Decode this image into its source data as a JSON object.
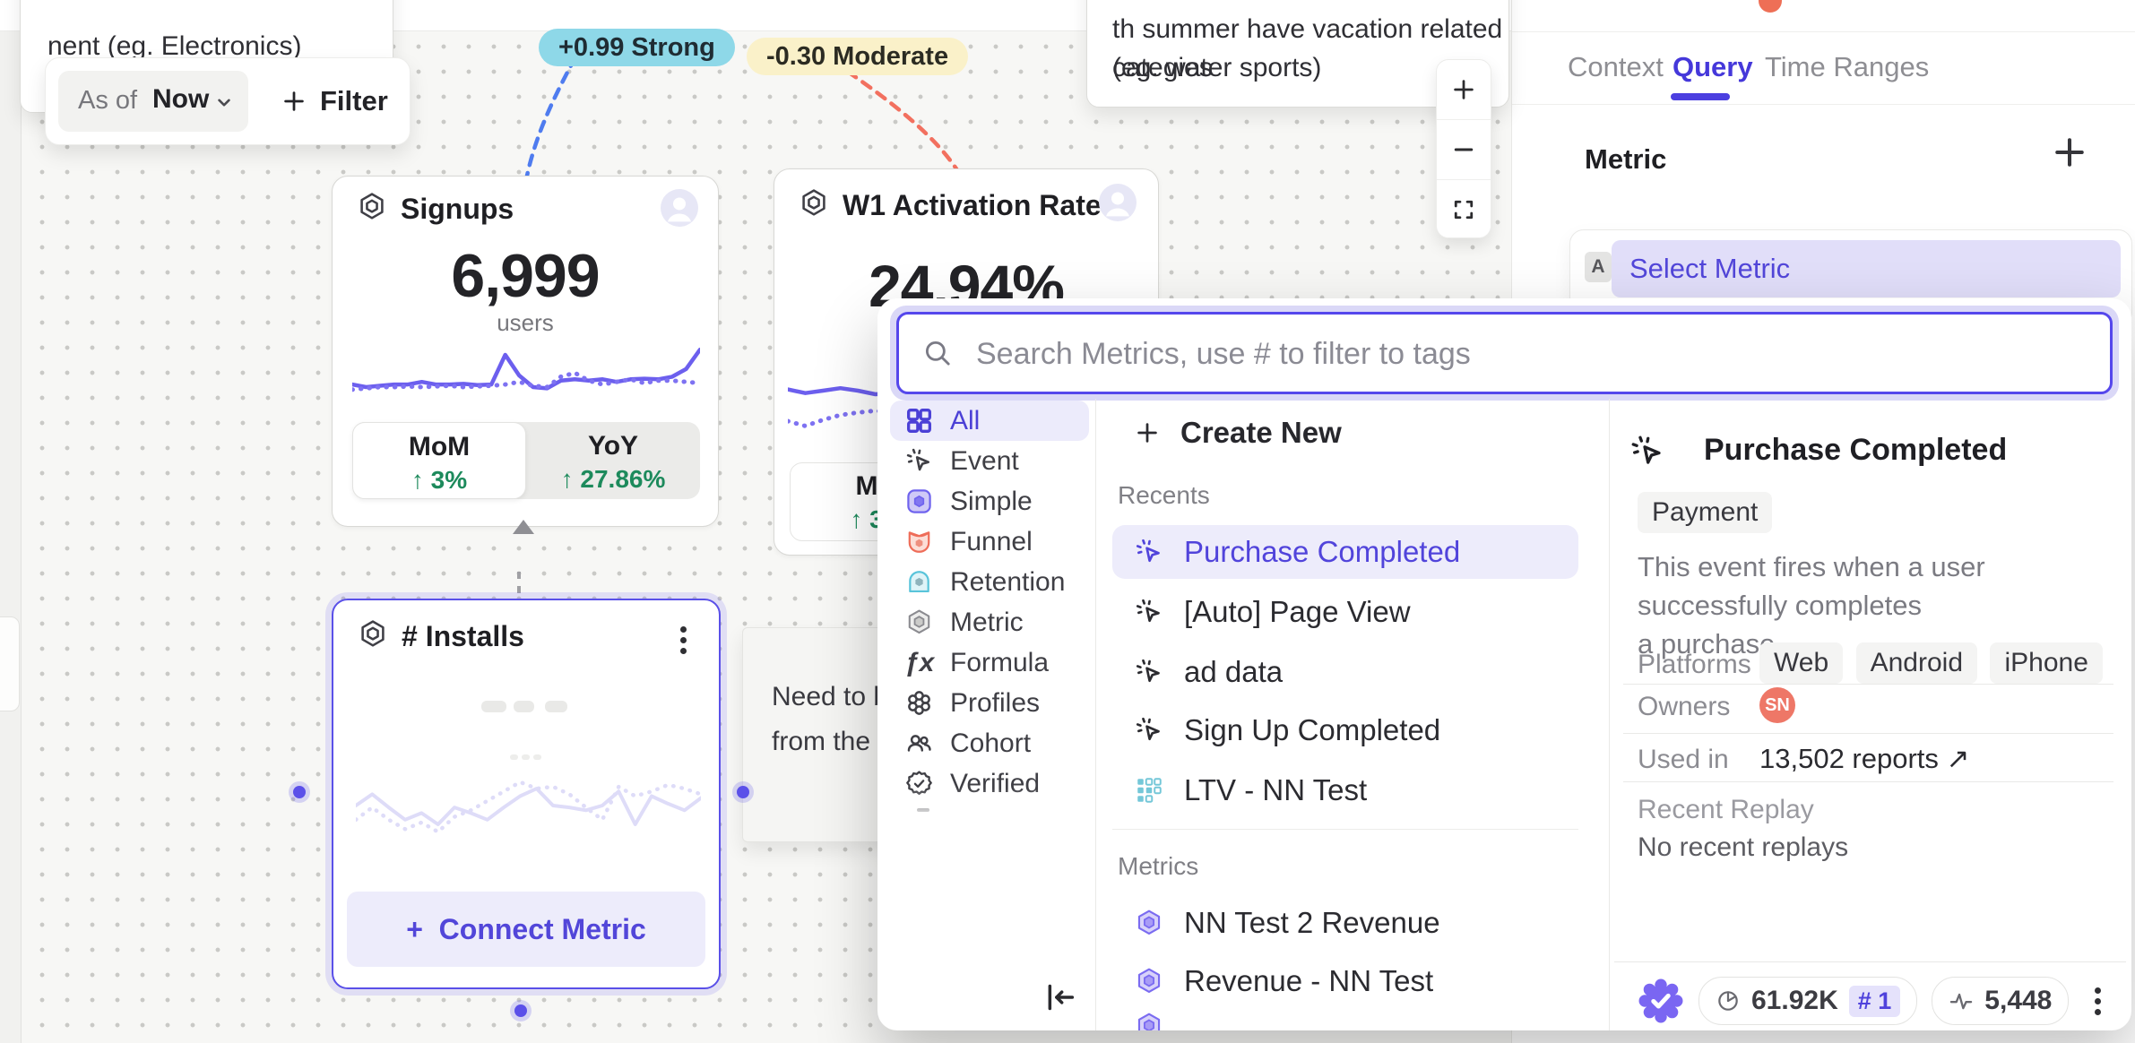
{
  "canvas": {
    "note_top_left": {
      "text": "nent  (eg. Electronics)"
    },
    "toolbar": {
      "as_of_label": "As of",
      "as_of_value": "Now",
      "filter_label": "Filter"
    },
    "correlation_badges": [
      {
        "text": "+0.99 Strong",
        "bg": "#8ed8e8"
      },
      {
        "text": "-0.30 Moderate",
        "bg": "#faf1c9"
      }
    ],
    "note_top_right": {
      "line1": "th summer have vacation related categies",
      "line2": "(eg. water sports)"
    },
    "note_middle": {
      "line1": "Need to brin",
      "line2": "from the wa"
    },
    "signups_card": {
      "title": "Signups",
      "value": "6,999",
      "unit": "users",
      "mom_label": "MoM",
      "mom_value": "↑ 3%",
      "yoy_label": "YoY",
      "yoy_value": "↑ 27.86%",
      "spark_solid": [
        64,
        68,
        66,
        64,
        64,
        60,
        64,
        64,
        63,
        65,
        64,
        18,
        50,
        68,
        70,
        58,
        56,
        58,
        56,
        60,
        56,
        55,
        56,
        52,
        40,
        10
      ],
      "spark_dotted": [
        72,
        70,
        68,
        68,
        67,
        68,
        67,
        66,
        68,
        67,
        66,
        64,
        60,
        66,
        68,
        52,
        46,
        58,
        64,
        60,
        56,
        62,
        58,
        58,
        60,
        62
      ]
    },
    "activation_card": {
      "title": "W1 Activation Rate",
      "value": "24.94%",
      "pill_label": "M",
      "pill_value": "↑ 3",
      "spark_solid": [
        20,
        26,
        22,
        18,
        22,
        28,
        26,
        32,
        45,
        58,
        72,
        82
      ],
      "spark_dotted": [
        72,
        80,
        70,
        62,
        58,
        55,
        58,
        60,
        66,
        74,
        82,
        88
      ]
    },
    "installs_card": {
      "title": "# Installs",
      "connect_label": "Connect Metric",
      "ghost_solid": [
        40,
        28,
        42,
        55,
        48,
        60,
        42,
        48,
        55,
        42,
        30,
        22,
        40,
        42,
        45,
        40,
        25,
        60,
        30,
        38,
        45,
        32
      ],
      "ghost_dotted": [
        55,
        42,
        55,
        65,
        58,
        68,
        52,
        45,
        35,
        25,
        15,
        22,
        20,
        28,
        42,
        55,
        20,
        30,
        25,
        18,
        22,
        28
      ]
    }
  },
  "right_panel": {
    "tabs": [
      {
        "label": "Context"
      },
      {
        "label": "Query"
      },
      {
        "label": "Time Ranges"
      }
    ],
    "active_tab": "Query",
    "metric_heading": "Metric",
    "select_row": {
      "badge": "A",
      "label": "Select Metric"
    }
  },
  "modal": {
    "search_placeholder": "Search Metrics, use # to filter to tags",
    "categories": [
      {
        "label": "All"
      },
      {
        "label": "Event"
      },
      {
        "label": "Simple"
      },
      {
        "label": "Funnel"
      },
      {
        "label": "Retention"
      },
      {
        "label": "Metric"
      },
      {
        "label": "Formula"
      },
      {
        "label": "Profiles"
      },
      {
        "label": "Cohort"
      },
      {
        "label": "Verified"
      }
    ],
    "selected_category": "All",
    "create_new_label": "Create New",
    "recents_heading": "Recents",
    "recents": [
      {
        "label": "Purchase Completed"
      },
      {
        "label": "[Auto] Page View"
      },
      {
        "label": "ad data"
      },
      {
        "label": "Sign Up Completed"
      },
      {
        "label": "LTV - NN Test"
      }
    ],
    "selected_recent": "Purchase Completed",
    "metrics_heading": "Metrics",
    "metrics": [
      {
        "label": "NN Test 2 Revenue"
      },
      {
        "label": "Revenue - NN Test"
      }
    ],
    "detail": {
      "title": "Purchase Completed",
      "tag": "Payment",
      "description_line1": "This event fires when a user successfully completes",
      "description_line2": "a purchase",
      "platforms_label": "Platforms",
      "platforms": [
        "Web",
        "Android",
        "iPhone"
      ],
      "owners_label": "Owners",
      "owner_initials": "SN",
      "used_in_label": "Used in",
      "used_in_value": "13,502 reports ↗",
      "recent_replay_label": "Recent Replay",
      "recent_replay_value": "No recent replays",
      "footer": {
        "volume": "61.92K",
        "rank": "# 1",
        "count": "5,448"
      }
    }
  }
}
